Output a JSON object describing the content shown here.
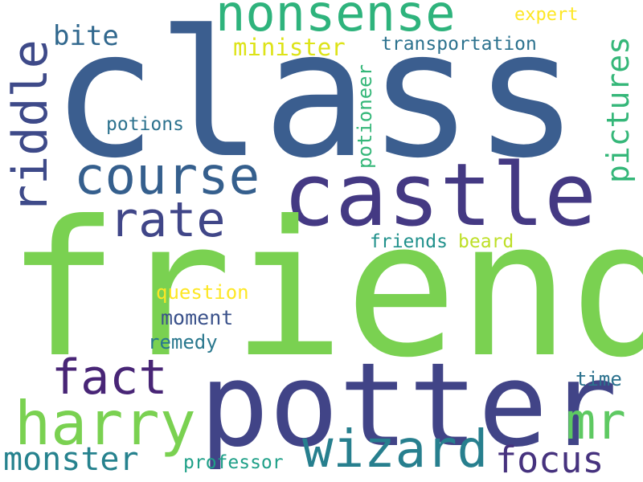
{
  "words": {
    "class": {
      "text": "class",
      "color": "#3b5e8f"
    },
    "friend": {
      "text": "friend",
      "color": "#7ad151"
    },
    "potter": {
      "text": "potter",
      "color": "#414487"
    },
    "castle": {
      "text": "castle",
      "color": "#443983"
    },
    "nonsense": {
      "text": "nonsense",
      "color": "#2eb37c"
    },
    "harry": {
      "text": "harry",
      "color": "#7ad151"
    },
    "wizard": {
      "text": "wizard",
      "color": "#277f8e"
    },
    "course": {
      "text": "course",
      "color": "#355f8d"
    },
    "rate": {
      "text": "rate",
      "color": "#404688"
    },
    "riddle": {
      "text": "riddle",
      "color": "#3e4a89"
    },
    "fact": {
      "text": "fact",
      "color": "#482576"
    },
    "mr": {
      "text": "mr",
      "color": "#5ec962"
    },
    "monster": {
      "text": "monster",
      "color": "#26828e"
    },
    "focus": {
      "text": "focus",
      "color": "#46327e"
    },
    "pictures": {
      "text": "pictures",
      "color": "#35b779"
    },
    "bite": {
      "text": "bite",
      "color": "#31688e"
    },
    "minister": {
      "text": "minister",
      "color": "#dde318"
    },
    "transportation": {
      "text": "transportation",
      "color": "#2c728e"
    },
    "expert": {
      "text": "expert",
      "color": "#fde725"
    },
    "potions": {
      "text": "potions",
      "color": "#2c728e"
    },
    "potioneer": {
      "text": "potioneer",
      "color": "#35b779"
    },
    "friends": {
      "text": "friends",
      "color": "#21918c"
    },
    "beard": {
      "text": "beard",
      "color": "#bddf26"
    },
    "question": {
      "text": "question",
      "color": "#fde725"
    },
    "moment": {
      "text": "moment",
      "color": "#3b528b"
    },
    "remedy": {
      "text": "remedy",
      "color": "#2a788e"
    },
    "time": {
      "text": "time",
      "color": "#2c728e"
    },
    "professor": {
      "text": "professor",
      "color": "#1fa088"
    }
  }
}
